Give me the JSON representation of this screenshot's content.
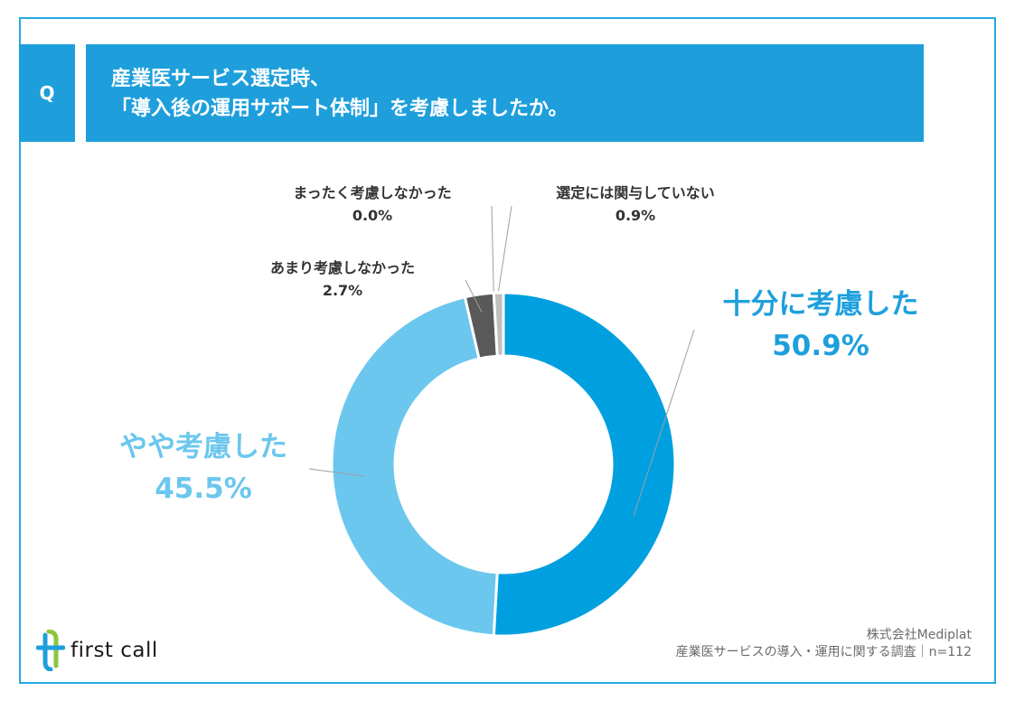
{
  "header": {
    "q_label": "Q",
    "title_line1": "産業医サービス選定時、",
    "title_line2": "「導入後の運用サポート体制」を考慮しましたか。"
  },
  "chart_data": {
    "type": "pie",
    "title": "産業医サービス選定時、「導入後の運用サポート体制」を考慮しましたか。",
    "donut": true,
    "slices": [
      {
        "label": "十分に考慮した",
        "value": 50.9,
        "display": "50.9%",
        "color": "#00a0e0"
      },
      {
        "label": "やや考慮した",
        "value": 45.5,
        "display": "45.5%",
        "color": "#6bc7ee"
      },
      {
        "label": "あまり考慮しなかった",
        "value": 2.7,
        "display": "2.7%",
        "color": "#595959"
      },
      {
        "label": "まったく考慮しなかった",
        "value": 0.0,
        "display": "0.0%",
        "color": "#333333"
      },
      {
        "label": "選定には関与していない",
        "value": 0.9,
        "display": "0.9%",
        "color": "#bfbfbf"
      }
    ]
  },
  "logo": {
    "text": "first call",
    "colors": {
      "blue": "#1e9fdc",
      "green": "#8cc63f"
    }
  },
  "footer": {
    "company": "株式会社Mediplat",
    "survey": "産業医サービスの導入・運用に関する調査｜n=112"
  }
}
